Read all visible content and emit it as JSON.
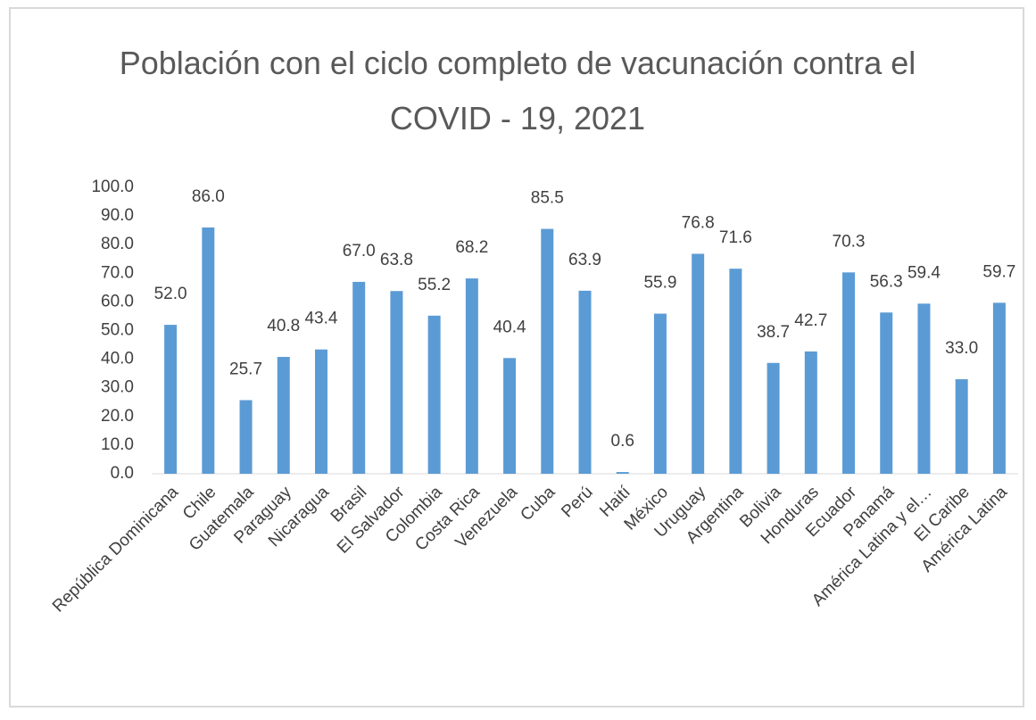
{
  "chart_data": {
    "type": "bar",
    "title": "Población con el ciclo completo de vacunación contra el COVID - 19, 2021",
    "categories": [
      "República Dominicana",
      "Chile",
      "Guatemala",
      "Paraguay",
      "Nicaragua",
      "Brasil",
      "El Salvador",
      "Colombia",
      "Costa Rica",
      "Venezuela",
      "Cuba",
      "Perú",
      "Haití",
      "México",
      "Uruguay",
      "Argentina",
      "Bolivia",
      "Honduras",
      "Ecuador",
      "Panamá",
      "América Latina y el…",
      "El Caribe",
      "América Latina"
    ],
    "values": [
      52.0,
      86.0,
      25.7,
      40.8,
      43.4,
      67.0,
      63.8,
      55.2,
      68.2,
      40.4,
      85.5,
      63.9,
      0.6,
      55.9,
      76.8,
      71.6,
      38.7,
      42.7,
      70.3,
      56.3,
      59.4,
      33.0,
      59.7
    ],
    "value_labels": [
      "52.0",
      "86.0",
      "25.7",
      "40.8",
      "43.4",
      "67.0",
      "63.8",
      "55.2",
      "68.2",
      "40.4",
      "85.5",
      "63.9",
      "0.6",
      "55.9",
      "76.8",
      "71.6",
      "38.7",
      "42.7",
      "70.3",
      "56.3",
      "59.4",
      "33.0",
      "59.7"
    ],
    "color": "#5b9bd5",
    "ylim": [
      0,
      100
    ],
    "yticks": [
      {
        "value": 0,
        "label": "0.0"
      },
      {
        "value": 10,
        "label": "10.0"
      },
      {
        "value": 20,
        "label": "20.0"
      },
      {
        "value": 30,
        "label": "30.0"
      },
      {
        "value": 40,
        "label": "40.0"
      },
      {
        "value": 50,
        "label": "50.0"
      },
      {
        "value": 60,
        "label": "60.0"
      },
      {
        "value": 70,
        "label": "70.0"
      },
      {
        "value": 80,
        "label": "80.0"
      },
      {
        "value": 90,
        "label": "90.0"
      },
      {
        "value": 100,
        "label": "100.0"
      }
    ],
    "grid": false
  }
}
